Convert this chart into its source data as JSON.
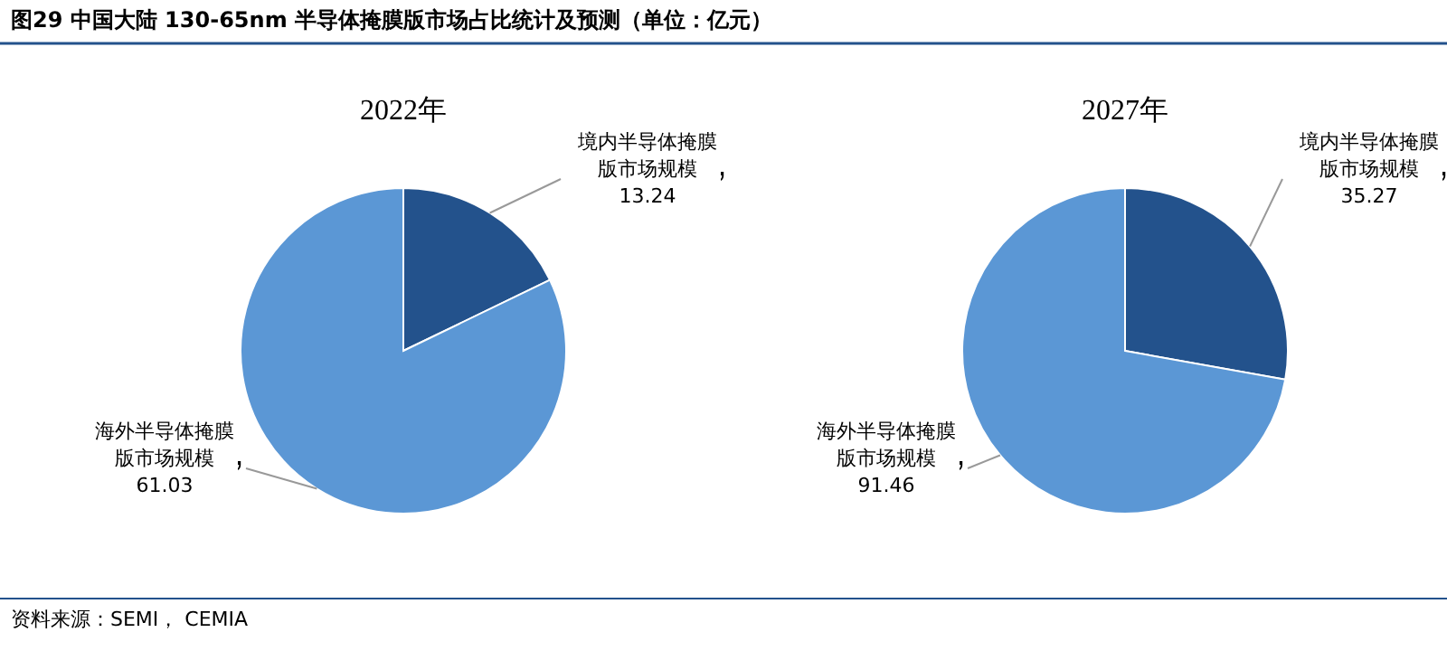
{
  "chart_data": [
    {
      "type": "pie",
      "title": "2022年",
      "categories": [
        "境内半导体掩膜版市场规模",
        "海外半导体掩膜版市场规模"
      ],
      "values": [
        13.24,
        61.03
      ],
      "colors": [
        "#23528c",
        "#5b97d5"
      ],
      "data_labels": true
    },
    {
      "type": "pie",
      "title": "2027年",
      "categories": [
        "境内半导体掩膜版市场规模",
        "海外半导体掩膜版市场规模"
      ],
      "values": [
        35.27,
        91.46
      ],
      "colors": [
        "#23528c",
        "#5b97d5"
      ],
      "data_labels": true
    },
    {
      "type": "other",
      "title": "图29 中国大陆 130-65nm 半导体掩膜版市场占比统计及预测（单位：亿元）",
      "annotations": [
        "资料来源：SEMI， CEMIA"
      ]
    }
  ]
}
